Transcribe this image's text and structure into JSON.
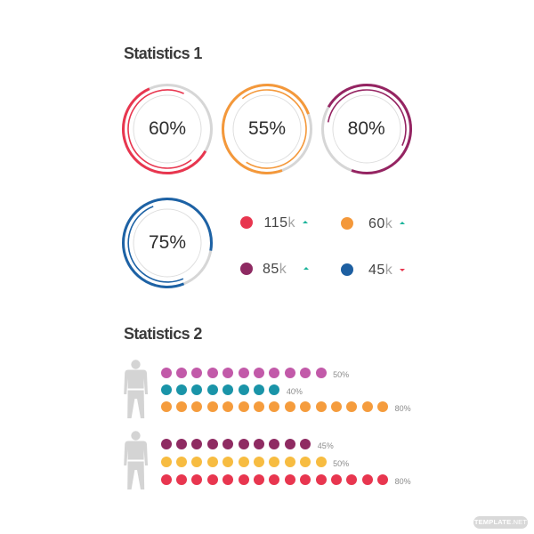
{
  "statistics_1": {
    "title": "Statistics 1",
    "ring_track_color": "#d6d6d6",
    "ring_inner_color": "#dedede",
    "rings": [
      {
        "label": "60%",
        "value": 60,
        "color": "#e8364f",
        "outer_arc": [
          120,
          336
        ],
        "middle_arc": [
          142,
          385
        ]
      },
      {
        "label": "55%",
        "value": 55,
        "color": "#f4983a",
        "outer_arc": [
          160,
          430
        ],
        "middle_arc": [
          321,
          572
        ]
      },
      {
        "label": "80%",
        "value": 80,
        "color": "#952462",
        "outer_arc": [
          300,
          560
        ],
        "middle_arc": [
          280,
          475
        ]
      },
      {
        "label": "75%",
        "value": 75,
        "color": "#1d62a5",
        "outer_arc": [
          158,
          460
        ],
        "middle_arc": [
          156,
          339
        ]
      }
    ],
    "trend_colors": {
      "up": "#1ab39a",
      "down": "#e8364f"
    },
    "kpis": [
      {
        "number": "115",
        "unit": "k",
        "color": "#e8364f",
        "trend": "up"
      },
      {
        "number": "60",
        "unit": "k",
        "color": "#f4983a",
        "trend": "up"
      },
      {
        "number": "85",
        "unit": "k",
        "color": "#8e2a62",
        "trend": "up"
      },
      {
        "number": "45",
        "unit": "k",
        "color": "#1d5fa1",
        "trend": "down"
      }
    ]
  },
  "statistics_2": {
    "title": "Statistics 2",
    "person_color": "#d4d4d4",
    "groups": [
      {
        "icon": "person-icon",
        "rows": [
          {
            "dots": 11,
            "label": "50%",
            "color": "#c25aa9"
          },
          {
            "dots": 8,
            "label": "40%",
            "color": "#1a94a8"
          },
          {
            "dots": 15,
            "label": "80%",
            "color": "#f59c3d"
          }
        ]
      },
      {
        "icon": "person-icon",
        "rows": [
          {
            "dots": 10,
            "label": "45%",
            "color": "#8f2b62"
          },
          {
            "dots": 11,
            "label": "50%",
            "color": "#f7bc41"
          },
          {
            "dots": 15,
            "label": "80%",
            "color": "#e8364f"
          }
        ]
      }
    ]
  },
  "watermark": {
    "brand": "TEMPLATE",
    "suffix": ".NET"
  },
  "chart_data": [
    {
      "type": "pie",
      "title": "Statistics 1",
      "style": "progress-rings",
      "labels": [
        "60%",
        "55%",
        "80%",
        "75%"
      ],
      "values": [
        60,
        55,
        80,
        75
      ],
      "colors": [
        "#e8364f",
        "#f4983a",
        "#952462",
        "#1d62a5"
      ]
    },
    {
      "type": "table",
      "title": "Statistics 1",
      "columns": [
        "color",
        "value",
        "trend"
      ],
      "rows": [
        [
          "#e8364f",
          "115k",
          "up"
        ],
        [
          "#f4983a",
          "60k",
          "up"
        ],
        [
          "#8e2a62",
          "85k",
          "up"
        ],
        [
          "#1d5fa1",
          "45k",
          "down"
        ]
      ]
    },
    {
      "type": "bar",
      "title": "Statistics 2",
      "style": "pictogram-dots",
      "series": [
        {
          "icon": "person",
          "labels": [
            "50%",
            "40%",
            "80%"
          ],
          "values": [
            50,
            40,
            80
          ],
          "dot_counts": [
            11,
            8,
            15
          ],
          "colors": [
            "#c25aa9",
            "#1a94a8",
            "#f59c3d"
          ]
        },
        {
          "icon": "person",
          "labels": [
            "45%",
            "50%",
            "80%"
          ],
          "values": [
            45,
            50,
            80
          ],
          "dot_counts": [
            10,
            11,
            15
          ],
          "colors": [
            "#8f2b62",
            "#f7bc41",
            "#e8364f"
          ]
        }
      ]
    }
  ]
}
